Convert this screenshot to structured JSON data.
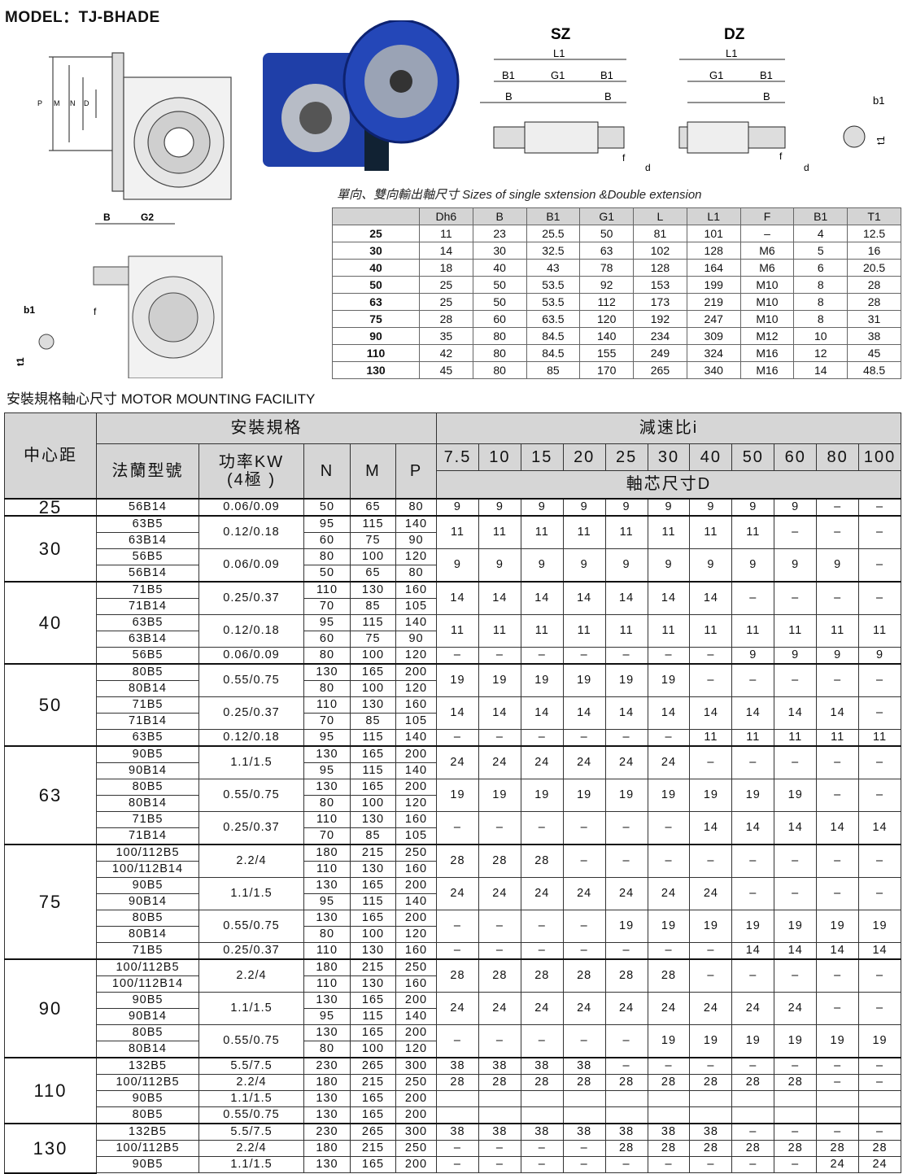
{
  "model_title": "MODEL：TJ-BHADE",
  "drawings": {
    "main_labels": [
      "P",
      "M",
      "N",
      "D"
    ],
    "side_labels": {
      "b": "B",
      "g2": "G2",
      "f": "f",
      "b1": "b1",
      "t1": "t1"
    },
    "sz": {
      "title": "SZ",
      "l1": "L1",
      "b1": "B1",
      "g1": "G1",
      "b1r": "B1",
      "b": "B",
      "br": "B",
      "f": "f",
      "d": "d"
    },
    "dz": {
      "title": "DZ",
      "l1": "L1",
      "g1": "G1",
      "b1": "B1",
      "b": "B",
      "f": "f",
      "d": "d"
    },
    "key": {
      "b1": "b1",
      "t1": "t1"
    },
    "gearbox_color": "#1f3fa8"
  },
  "shaft_caption": "單向、雙向輸出軸尺寸  Sizes of single sxtension &Double extension",
  "shaft_table": {
    "headers": [
      "",
      "Dh6",
      "B",
      "B1",
      "G1",
      "L",
      "L1",
      "F",
      "B1",
      "T1"
    ],
    "rows": [
      [
        "25",
        "11",
        "23",
        "25.5",
        "50",
        "81",
        "101",
        "–",
        "4",
        "12.5"
      ],
      [
        "30",
        "14",
        "30",
        "32.5",
        "63",
        "102",
        "128",
        "M6",
        "5",
        "16"
      ],
      [
        "40",
        "18",
        "40",
        "43",
        "78",
        "128",
        "164",
        "M6",
        "6",
        "20.5"
      ],
      [
        "50",
        "25",
        "50",
        "53.5",
        "92",
        "153",
        "199",
        "M10",
        "8",
        "28"
      ],
      [
        "63",
        "25",
        "50",
        "53.5",
        "112",
        "173",
        "219",
        "M10",
        "8",
        "28"
      ],
      [
        "75",
        "28",
        "60",
        "63.5",
        "120",
        "192",
        "247",
        "M10",
        "8",
        "31"
      ],
      [
        "90",
        "35",
        "80",
        "84.5",
        "140",
        "234",
        "309",
        "M12",
        "10",
        "38"
      ],
      [
        "110",
        "42",
        "80",
        "84.5",
        "155",
        "249",
        "324",
        "M16",
        "12",
        "45"
      ],
      [
        "130",
        "45",
        "80",
        "85",
        "170",
        "265",
        "340",
        "M16",
        "14",
        "48.5"
      ]
    ]
  },
  "section_title": "安裝規格軸心尺寸 MOTOR MOUNTING FACILITY",
  "mount_table": {
    "header": {
      "center": "中心距",
      "spec": "安裝規格",
      "ratio": "減速比i",
      "flange": "法蘭型號",
      "power": "功率KW\n(4極 )",
      "n": "N",
      "m": "M",
      "p": "P",
      "shaft_d": "軸芯尺寸D",
      "ratios": [
        "7.5",
        "10",
        "15",
        "20",
        "25",
        "30",
        "40",
        "50",
        "60",
        "80",
        "100"
      ]
    },
    "groups": [
      {
        "center": "25",
        "blocks": [
          {
            "power": "0.06/0.09",
            "rows": [
              [
                "56B14",
                "50",
                "65",
                "80"
              ]
            ],
            "d": [
              "9",
              "9",
              "9",
              "9",
              "9",
              "9",
              "9",
              "9",
              "9",
              "–",
              "–"
            ]
          }
        ]
      },
      {
        "center": "30",
        "blocks": [
          {
            "power": "0.12/0.18",
            "rows": [
              [
                "63B5",
                "95",
                "115",
                "140"
              ],
              [
                "63B14",
                "60",
                "75",
                "90"
              ]
            ],
            "d": [
              "11",
              "11",
              "11",
              "11",
              "11",
              "11",
              "11",
              "11",
              "–",
              "–",
              "–"
            ]
          },
          {
            "power": "0.06/0.09",
            "rows": [
              [
                "56B5",
                "80",
                "100",
                "120"
              ],
              [
                "56B14",
                "50",
                "65",
                "80"
              ]
            ],
            "d": [
              "9",
              "9",
              "9",
              "9",
              "9",
              "9",
              "9",
              "9",
              "9",
              "9",
              "–"
            ]
          }
        ]
      },
      {
        "center": "40",
        "blocks": [
          {
            "power": "0.25/0.37",
            "rows": [
              [
                "71B5",
                "110",
                "130",
                "160"
              ],
              [
                "71B14",
                "70",
                "85",
                "105"
              ]
            ],
            "d": [
              "14",
              "14",
              "14",
              "14",
              "14",
              "14",
              "14",
              "–",
              "–",
              "–",
              "–"
            ]
          },
          {
            "power": "0.12/0.18",
            "rows": [
              [
                "63B5",
                "95",
                "115",
                "140"
              ],
              [
                "63B14",
                "60",
                "75",
                "90"
              ]
            ],
            "d": [
              "11",
              "11",
              "11",
              "11",
              "11",
              "11",
              "11",
              "11",
              "11",
              "11",
              "11"
            ]
          },
          {
            "power": "0.06/0.09",
            "rows": [
              [
                "56B5",
                "80",
                "100",
                "120"
              ]
            ],
            "d": [
              "–",
              "–",
              "–",
              "–",
              "–",
              "–",
              "–",
              "9",
              "9",
              "9",
              "9"
            ]
          }
        ]
      },
      {
        "center": "50",
        "blocks": [
          {
            "power": "0.55/0.75",
            "rows": [
              [
                "80B5",
                "130",
                "165",
                "200"
              ],
              [
                "80B14",
                "80",
                "100",
                "120"
              ]
            ],
            "d": [
              "19",
              "19",
              "19",
              "19",
              "19",
              "19",
              "–",
              "–",
              "–",
              "–",
              "–"
            ]
          },
          {
            "power": "0.25/0.37",
            "rows": [
              [
                "71B5",
                "110",
                "130",
                "160"
              ],
              [
                "71B14",
                "70",
                "85",
                "105"
              ]
            ],
            "d": [
              "14",
              "14",
              "14",
              "14",
              "14",
              "14",
              "14",
              "14",
              "14",
              "14",
              "–"
            ]
          },
          {
            "power": "0.12/0.18",
            "rows": [
              [
                "63B5",
                "95",
                "115",
                "140"
              ]
            ],
            "d": [
              "–",
              "–",
              "–",
              "–",
              "–",
              "–",
              "11",
              "11",
              "11",
              "11",
              "11"
            ]
          }
        ]
      },
      {
        "center": "63",
        "blocks": [
          {
            "power": "1.1/1.5",
            "rows": [
              [
                "90B5",
                "130",
                "165",
                "200"
              ],
              [
                "90B14",
                "95",
                "115",
                "140"
              ]
            ],
            "d": [
              "24",
              "24",
              "24",
              "24",
              "24",
              "24",
              "–",
              "–",
              "–",
              "–",
              "–"
            ]
          },
          {
            "power": "0.55/0.75",
            "rows": [
              [
                "80B5",
                "130",
                "165",
                "200"
              ],
              [
                "80B14",
                "80",
                "100",
                "120"
              ]
            ],
            "d": [
              "19",
              "19",
              "19",
              "19",
              "19",
              "19",
              "19",
              "19",
              "19",
              "–",
              "–"
            ]
          },
          {
            "power": "0.25/0.37",
            "rows": [
              [
                "71B5",
                "110",
                "130",
                "160"
              ],
              [
                "71B14",
                "70",
                "85",
                "105"
              ]
            ],
            "d": [
              "–",
              "–",
              "–",
              "–",
              "–",
              "–",
              "14",
              "14",
              "14",
              "14",
              "14"
            ]
          }
        ]
      },
      {
        "center": "75",
        "blocks": [
          {
            "power": "2.2/4",
            "rows": [
              [
                "100/112B5",
                "180",
                "215",
                "250"
              ],
              [
                "100/112B14",
                "110",
                "130",
                "160"
              ]
            ],
            "d": [
              "28",
              "28",
              "28",
              "–",
              "–",
              "–",
              "–",
              "–",
              "–",
              "–",
              "–"
            ]
          },
          {
            "power": "1.1/1.5",
            "rows": [
              [
                "90B5",
                "130",
                "165",
                "200"
              ],
              [
                "90B14",
                "95",
                "115",
                "140"
              ]
            ],
            "d": [
              "24",
              "24",
              "24",
              "24",
              "24",
              "24",
              "24",
              "–",
              "–",
              "–",
              "–"
            ]
          },
          {
            "power": "0.55/0.75",
            "rows": [
              [
                "80B5",
                "130",
                "165",
                "200"
              ],
              [
                "80B14",
                "80",
                "100",
                "120"
              ]
            ],
            "d": [
              "–",
              "–",
              "–",
              "–",
              "19",
              "19",
              "19",
              "19",
              "19",
              "19",
              "19"
            ]
          },
          {
            "power": "0.25/0.37",
            "rows": [
              [
                "71B5",
                "110",
                "130",
                "160"
              ]
            ],
            "d": [
              "–",
              "–",
              "–",
              "–",
              "–",
              "–",
              "–",
              "14",
              "14",
              "14",
              "14"
            ]
          }
        ]
      },
      {
        "center": "90",
        "blocks": [
          {
            "power": "2.2/4",
            "rows": [
              [
                "100/112B5",
                "180",
                "215",
                "250"
              ],
              [
                "100/112B14",
                "110",
                "130",
                "160"
              ]
            ],
            "d": [
              "28",
              "28",
              "28",
              "28",
              "28",
              "28",
              "–",
              "–",
              "–",
              "–",
              "–"
            ]
          },
          {
            "power": "1.1/1.5",
            "rows": [
              [
                "90B5",
                "130",
                "165",
                "200"
              ],
              [
                "90B14",
                "95",
                "115",
                "140"
              ]
            ],
            "d": [
              "24",
              "24",
              "24",
              "24",
              "24",
              "24",
              "24",
              "24",
              "24",
              "–",
              "–"
            ]
          },
          {
            "power": "0.55/0.75",
            "rows": [
              [
                "80B5",
                "130",
                "165",
                "200"
              ],
              [
                "80B14",
                "80",
                "100",
                "120"
              ]
            ],
            "d": [
              "–",
              "–",
              "–",
              "–",
              "–",
              "19",
              "19",
              "19",
              "19",
              "19",
              "19"
            ]
          }
        ]
      },
      {
        "center": "110",
        "blocks": [
          {
            "power": "5.5/7.5",
            "rows": [
              [
                "132B5",
                "230",
                "265",
                "300"
              ]
            ],
            "d": [
              "38",
              "38",
              "38",
              "38",
              "–",
              "–",
              "–",
              "–",
              "–",
              "–",
              "–"
            ]
          },
          {
            "power": "2.2/4",
            "rows": [
              [
                "100/112B5",
                "180",
                "215",
                "250"
              ]
            ],
            "d": [
              "28",
              "28",
              "28",
              "28",
              "28",
              "28",
              "28",
              "28",
              "28",
              "–",
              "–"
            ]
          },
          {
            "power": "1.1/1.5",
            "rows": [
              [
                "90B5",
                "130",
                "165",
                "200"
              ]
            ],
            "d": [
              "",
              "",
              "",
              "",
              "",
              "",
              "",
              "",
              "",
              "",
              ""
            ]
          },
          {
            "power": "0.55/0.75",
            "rows": [
              [
                "80B5",
                "130",
                "165",
                "200"
              ]
            ],
            "d": [
              "",
              "",
              "",
              "",
              "",
              "",
              "",
              "",
              "",
              "",
              ""
            ]
          }
        ]
      },
      {
        "center": "130",
        "blocks": [
          {
            "power": "5.5/7.5",
            "rows": [
              [
                "132B5",
                "230",
                "265",
                "300"
              ]
            ],
            "d": [
              "38",
              "38",
              "38",
              "38",
              "38",
              "38",
              "38",
              "–",
              "–",
              "–",
              "–"
            ]
          },
          {
            "power": "2.2/4",
            "rows": [
              [
                "100/112B5",
                "180",
                "215",
                "250"
              ]
            ],
            "d": [
              "–",
              "–",
              "–",
              "–",
              "28",
              "28",
              "28",
              "28",
              "28",
              "28",
              "28"
            ]
          },
          {
            "power": "1.1/1.5",
            "rows": [
              [
                "90B5",
                "130",
                "165",
                "200"
              ]
            ],
            "d": [
              "–",
              "–",
              "–",
              "–",
              "–",
              "–",
              "–",
              "–",
              "–",
              "24",
              "24"
            ]
          }
        ]
      }
    ]
  }
}
